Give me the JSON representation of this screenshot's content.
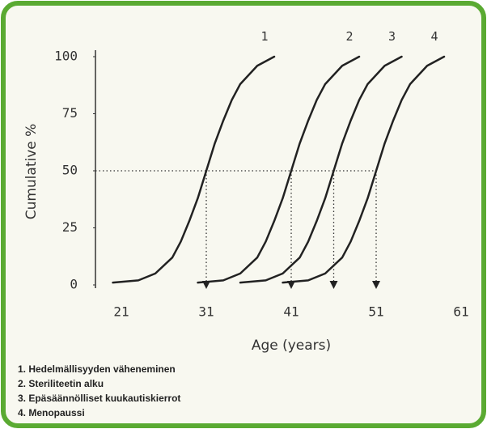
{
  "chart_data": {
    "type": "line",
    "y_label": "Cumulative %",
    "x_label": "Age (years)",
    "xlim": [
      21,
      61
    ],
    "xticks": [
      21,
      31,
      41,
      51,
      61
    ],
    "ylim": [
      0,
      100
    ],
    "yticks": [
      0,
      25,
      50,
      75,
      100
    ],
    "reference_y": 50,
    "markers": [
      31,
      41,
      46,
      51
    ],
    "series": [
      {
        "name": "1",
        "color": "#222222",
        "x": [
          20,
          23,
          25,
          27,
          28,
          29,
          30,
          31,
          32,
          33,
          34,
          35,
          37,
          39
        ],
        "values": [
          1,
          2,
          5,
          12,
          19,
          28,
          38,
          50,
          62,
          72,
          81,
          88,
          96,
          100
        ]
      },
      {
        "name": "2",
        "color": "#222222",
        "x": [
          30,
          33,
          35,
          37,
          38,
          39,
          40,
          41,
          42,
          43,
          44,
          45,
          47,
          49
        ],
        "values": [
          1,
          2,
          5,
          12,
          19,
          28,
          38,
          50,
          62,
          72,
          81,
          88,
          96,
          100
        ]
      },
      {
        "name": "3",
        "color": "#222222",
        "x": [
          35,
          38,
          40,
          42,
          43,
          44,
          45,
          46,
          47,
          48,
          49,
          50,
          52,
          54
        ],
        "values": [
          1,
          2,
          5,
          12,
          19,
          28,
          38,
          50,
          62,
          72,
          81,
          88,
          96,
          100
        ]
      },
      {
        "name": "4",
        "color": "#222222",
        "x": [
          40,
          43,
          45,
          47,
          48,
          49,
          50,
          51,
          52,
          53,
          54,
          55,
          57,
          59
        ],
        "values": [
          1,
          2,
          5,
          12,
          19,
          28,
          38,
          50,
          62,
          72,
          81,
          88,
          96,
          100
        ]
      }
    ],
    "legend": [
      "1. Hedelmällisyyden väheneminen",
      "2. Steriliteetin alku",
      "3. Epäsäännölliset kuukautiskierrot",
      "4. Menopaussi"
    ]
  }
}
